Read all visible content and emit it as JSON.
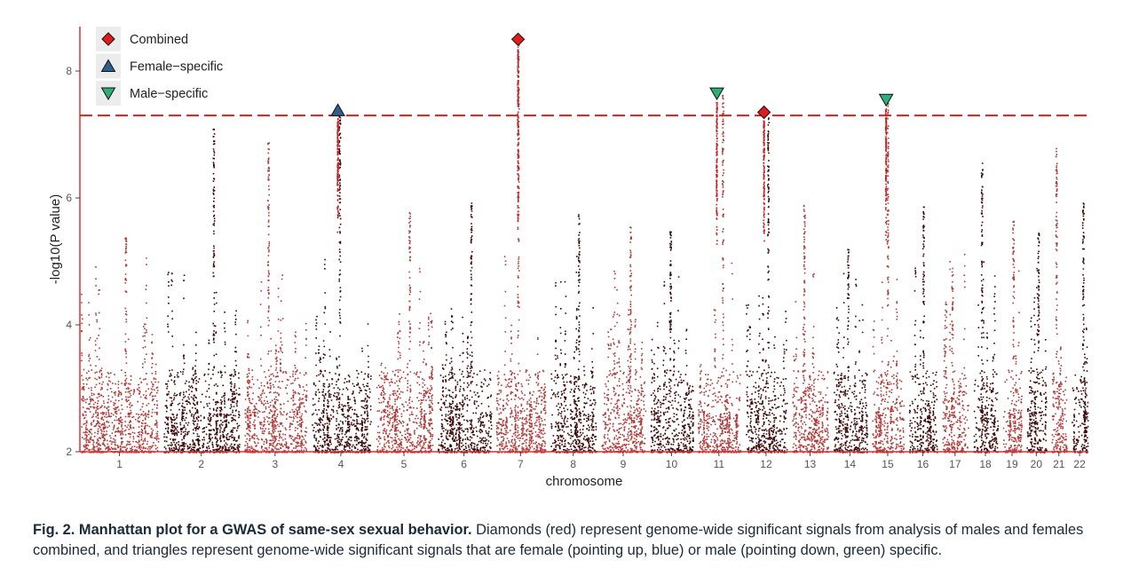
{
  "chart_data": {
    "type": "scatter",
    "subtype": "manhattan",
    "xlabel": "chromosome",
    "ylabel": "-log10(P value)",
    "ylim": [
      2,
      8.7
    ],
    "yticks": [
      2,
      4,
      6,
      8
    ],
    "significance_threshold": 7.3,
    "colors": {
      "odd_chromosomes": "#b03a3a",
      "even_chromosomes": "#3a0606",
      "threshold": "#d62020",
      "axis": "#e03030",
      "combined": "#e21b1b",
      "female": "#2f5f8a",
      "male": "#2fae7a"
    },
    "chromosomes": [
      "1",
      "2",
      "3",
      "4",
      "5",
      "6",
      "7",
      "8",
      "9",
      "10",
      "11",
      "12",
      "13",
      "14",
      "15",
      "16",
      "17",
      "18",
      "19",
      "20",
      "21",
      "22"
    ],
    "relative_lengths": [
      249,
      243,
      198,
      191,
      181,
      171,
      159,
      146,
      141,
      136,
      135,
      134,
      115,
      107,
      102,
      90,
      83,
      78,
      59,
      63,
      48,
      51
    ],
    "peak_max_by_chromosome": [
      5.4,
      7.1,
      6.9,
      7.4,
      5.9,
      6.0,
      8.5,
      5.8,
      5.6,
      5.5,
      7.65,
      7.3,
      5.9,
      5.2,
      7.55,
      5.9,
      4.9,
      6.6,
      5.7,
      5.5,
      6.8,
      6.0
    ],
    "legend": {
      "position": "top-left",
      "entries": [
        {
          "label": "Combined",
          "marker": "diamond",
          "color": "#e21b1b"
        },
        {
          "label": "Female−specific",
          "marker": "triangle-up",
          "color": "#2f5f8a"
        },
        {
          "label": "Male−specific",
          "marker": "triangle-down",
          "color": "#2fae7a"
        }
      ]
    },
    "significant_signals": [
      {
        "chromosome": "4",
        "type": "female",
        "y": 7.38
      },
      {
        "chromosome": "7",
        "type": "combined",
        "y": 8.5
      },
      {
        "chromosome": "11",
        "type": "male",
        "y": 7.65
      },
      {
        "chromosome": "12",
        "type": "combined",
        "y": 7.35
      },
      {
        "chromosome": "15",
        "type": "male",
        "y": 7.55
      }
    ]
  },
  "caption": {
    "bold": "Fig. 2. Manhattan plot for a GWAS of same-sex sexual behavior.",
    "text": " Diamonds (red) represent genome-wide significant signals from analysis of males and females combined, and triangles represent genome-wide significant signals that are female (pointing up, blue) or male (pointing down, green) specific."
  }
}
